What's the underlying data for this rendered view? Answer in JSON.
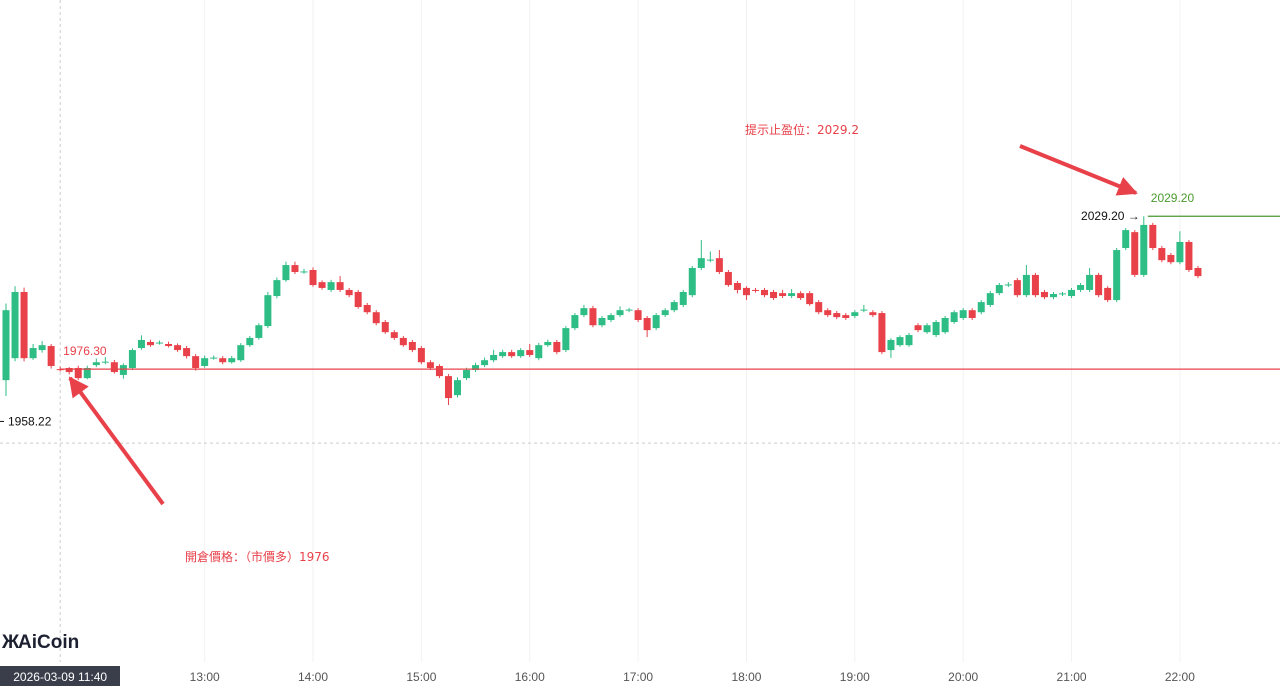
{
  "chart_data": {
    "type": "candlestick",
    "up_color": "#2ebd85",
    "down_color": "#e8414a",
    "grid": true,
    "ylim": [
      1875,
      2104
    ],
    "categories": [
      null,
      null,
      null,
      null,
      null,
      null,
      "2026-03-09 11:40",
      null,
      null,
      null,
      null,
      null,
      null,
      null,
      null,
      null,
      null,
      null,
      null,
      null,
      null,
      null,
      "13:00",
      null,
      null,
      null,
      null,
      null,
      null,
      null,
      null,
      null,
      null,
      null,
      "14:00",
      null,
      null,
      null,
      null,
      null,
      null,
      null,
      null,
      null,
      null,
      null,
      "15:00",
      null,
      null,
      null,
      null,
      null,
      null,
      null,
      null,
      null,
      null,
      null,
      "16:00",
      null,
      null,
      null,
      null,
      null,
      null,
      null,
      null,
      null,
      null,
      null,
      "17:00",
      null,
      null,
      null,
      null,
      null,
      null,
      null,
      null,
      null,
      null,
      null,
      "18:00",
      null,
      null,
      null,
      null,
      null,
      null,
      null,
      null,
      null,
      null,
      null,
      "19:00",
      null,
      null,
      null,
      null,
      null,
      null,
      null,
      null,
      null,
      null,
      null,
      "20:00",
      null,
      null,
      null,
      null,
      null,
      null,
      null,
      null,
      null,
      null,
      null,
      "21:00",
      null,
      null,
      null,
      null,
      null,
      null,
      null,
      null,
      null,
      null,
      null,
      "22:00",
      null,
      null
    ],
    "open": [
      1972.5,
      1980.1,
      2003,
      1980.1,
      1982.9,
      1984.3,
      1976.3,
      1976.7,
      1976.7,
      1973.2,
      1977.7,
      1978.7,
      1978.7,
      1974.3,
      1976.7,
      1983.6,
      1985.7,
      1985.3,
      1985,
      1984.6,
      1983.6,
      1980.8,
      1977.4,
      1980.1,
      1980.1,
      1978.7,
      1979.4,
      1984.6,
      1987.1,
      1991.2,
      2001.6,
      2007.1,
      2012.3,
      2009.9,
      2010.6,
      2006.4,
      2003.7,
      2006.4,
      2003.7,
      2003,
      1998.5,
      1996,
      1992.6,
      1989.1,
      1987.1,
      1985.7,
      1983.6,
      1978.7,
      1977.4,
      1973.9,
      1967.3,
      1973.2,
      1976,
      1977.7,
      1979.4,
      1980.8,
      1982.2,
      1980.8,
      1982.9,
      1980.1,
      1984.6,
      1985.7,
      1982.9,
      1990.5,
      1995,
      1997.4,
      1991.5,
      1993.3,
      1995,
      1996.7,
      1996.7,
      1994,
      1990.5,
      1995,
      1996.7,
      1998.5,
      2001.9,
      2011.3,
      2014,
      2014.7,
      2009.9,
      2006.1,
      2004.4,
      2003.7,
      2003.7,
      2003,
      2002.6,
      2001.6,
      2002.6,
      2002.6,
      1999.5,
      1996.7,
      1995.7,
      1995,
      1994.7,
      1996.7,
      1996,
      1995.7,
      1982.9,
      1984.6,
      1984.6,
      1991.5,
      1989.1,
      1988.1,
      1989.1,
      1992.6,
      1994,
      1996.7,
      1996,
      1998.5,
      2002.6,
      2005.4,
      2007.1,
      2001.9,
      2008.9,
      2003,
      2001.2,
      2002.3,
      2001.6,
      2003.7,
      2003.7,
      2008.9,
      2004.4,
      2000.2,
      2018.2,
      2023.7,
      2008.9,
      2026.2,
      2018.2,
      2015.8,
      2013.3,
      2020.3,
      2011.3
    ],
    "high": [
      1999,
      2005,
      2004.5,
      1985,
      1986,
      1985,
      1977.2,
      1977,
      1977.5,
      1977.5,
      1980,
      1980.5,
      1979.5,
      1978.3,
      1983.5,
      1988,
      1986.5,
      1986.2,
      1985.8,
      1985.2,
      1984.3,
      1981.5,
      1981,
      1981,
      1980.8,
      1980.9,
      1985.3,
      1987.8,
      1992.2,
      2003,
      2008,
      2013.5,
      2013.5,
      2011,
      2011.5,
      2007,
      2007.2,
      2008.5,
      2004.4,
      2003.7,
      1999.2,
      1996.7,
      1993.3,
      1989.8,
      1987.8,
      1986.4,
      1984.3,
      1979.4,
      1978,
      1974.6,
      1973.5,
      1976.8,
      1978.5,
      1980.3,
      1983,
      1983,
      1983,
      1983.6,
      1985,
      1985.4,
      1986.5,
      1986.4,
      1991.2,
      1995.7,
      1998.5,
      1998.2,
      1994.7,
      1995.7,
      1998,
      1997.5,
      1997.4,
      1994.7,
      1995.7,
      1997.4,
      2000.2,
      2003.7,
      2012,
      2021,
      2017,
      2017.5,
      2010.6,
      2006.8,
      2005,
      2004.4,
      2004.4,
      2003.7,
      2003.7,
      2004,
      2003.3,
      2003.3,
      2000.2,
      1997.4,
      1996.4,
      1995.7,
      1996.7,
      1998.5,
      1996.7,
      1996.4,
      1987,
      1988,
      1988.8,
      1992.2,
      1992.2,
      1993.3,
      1994.7,
      1996.7,
      1997.4,
      1997.4,
      2000.2,
      2003.3,
      2006.1,
      2006.4,
      2007.8,
      2012.3,
      2009.6,
      2003.7,
      2003,
      2003,
      2004.4,
      2006.1,
      2011.3,
      2009.6,
      2005,
      2018.2,
      2025.1,
      2024.4,
      2029.2,
      2026.9,
      2018.9,
      2016.5,
      2024,
      2021,
      2012
    ],
    "low": [
      1967,
      1979,
      1979,
      1979.5,
      1982,
      1976.5,
      1975.5,
      1974.5,
      1972.5,
      1972.8,
      1977,
      1978,
      1974.8,
      1973,
      1976,
      1983,
      1984,
      1984.8,
      1983.8,
      1982.3,
      1980,
      1975.8,
      1976.8,
      1979.6,
      1978,
      1978.2,
      1978.8,
      1984,
      1986.5,
      1990.5,
      2000.8,
      2006.5,
      2009.2,
      2009.3,
      2004.8,
      2003.8,
      2003,
      2003,
      2001.2,
      1997.2,
      1995.3,
      1991.5,
      1988.5,
      1986.4,
      1984,
      1982.2,
      1978,
      1976,
      1973.2,
      1963.9,
      1966.5,
      1972.5,
      1975.3,
      1977,
      1978.7,
      1980.2,
      1980.2,
      1980.2,
      1980.5,
      1979.4,
      1984,
      1981.5,
      1982.2,
      1989.8,
      1994.3,
      1990.8,
      1990.8,
      1992.6,
      1994.3,
      1996,
      1992.6,
      1987.4,
      1989.8,
      1994.3,
      1996,
      1997.8,
      2001.2,
      2010.6,
      2013.3,
      2009.2,
      2004.8,
      2002.5,
      2000.2,
      2002.8,
      2001.2,
      2000.2,
      2000.9,
      2000.9,
      2000.2,
      1998.2,
      1995.3,
      1994.3,
      1993.6,
      1993.3,
      1994,
      1996,
      1994.3,
      1981.5,
      1980.2,
      1984,
      1984,
      1989.1,
      1988.5,
      1987.4,
      1988.5,
      1992,
      1993.3,
      1993.3,
      1995.3,
      1997.8,
      2001.9,
      2004.7,
      2001.2,
      2001.2,
      2001.2,
      2000.5,
      2000.5,
      2001.6,
      2000.9,
      2003,
      2003,
      2001.2,
      1999.5,
      1999.5,
      2017.5,
      2008.2,
      2008.2,
      2017.5,
      2013.3,
      2012.6,
      2012.6,
      2009.9,
      2007.8
    ],
    "close": [
      1996.7,
      2003,
      1980.1,
      1983.6,
      1984.6,
      1977.4,
      1976,
      1975.3,
      1973.2,
      1976.7,
      1978.7,
      1978.9,
      1975.3,
      1977.7,
      1982.9,
      1986.4,
      1984.6,
      1985.5,
      1984.3,
      1982.9,
      1980.8,
      1976.7,
      1980.1,
      1980.3,
      1978.7,
      1980.1,
      1984.6,
      1987.1,
      1991.5,
      2001.9,
      2007.1,
      2012.3,
      2009.9,
      2010.1,
      2005.4,
      2004.4,
      2006.4,
      2003.7,
      2001.9,
      1997.8,
      1996,
      1992.2,
      1989.1,
      1987.1,
      1984.6,
      1982.9,
      1978.7,
      1976.7,
      1973.9,
      1966.3,
      1972.5,
      1976,
      1977.7,
      1979.4,
      1981.2,
      1982.2,
      1980.8,
      1982.9,
      1981.2,
      1984.6,
      1985.7,
      1982.2,
      1990.5,
      1995,
      1997.4,
      1991.5,
      1994,
      1995,
      1996.7,
      1996.9,
      1993.3,
      1989.8,
      1995,
      1996.7,
      1999.5,
      2003,
      2011.3,
      2014.7,
      2014.2,
      2009.9,
      2005.4,
      2003.7,
      2001.9,
      2003.5,
      2001.9,
      2000.9,
      2001.6,
      2002.6,
      2000.9,
      1998.8,
      1996,
      1995,
      1994.3,
      1994,
      1996,
      1996.9,
      1995,
      1982.2,
      1986.4,
      1987.4,
      1988.1,
      1989.8,
      1991.5,
      1992.6,
      1994,
      1996,
      1996.7,
      1994,
      1999.5,
      2002.6,
      2005.4,
      2005.6,
      2001.9,
      2008.9,
      2001.9,
      2001.2,
      2002.3,
      2002.5,
      2003.7,
      2005.4,
      2008.9,
      2001.9,
      2000.2,
      2017.5,
      2024.4,
      2008.9,
      2026.2,
      2018.2,
      2014,
      2013.3,
      2020.3,
      2010.6,
      2008.5
    ],
    "lines": [
      {
        "value": 1976.3,
        "label": "1976.30",
        "color": "#e8414a"
      },
      {
        "value": 2029.2,
        "label": "2029.20",
        "color": "#4a9a2e"
      }
    ],
    "high_marker": {
      "value": 2029.2,
      "label": "2029.20 →"
    },
    "low_marker": {
      "value": 1958.22,
      "label": "1958.22"
    },
    "crosshair": {
      "price": 1950.7
    },
    "watermark": "AiCoin",
    "annotations": [
      "提示止盈位：2029.2",
      "開倉價格：（市價多）1976"
    ]
  }
}
